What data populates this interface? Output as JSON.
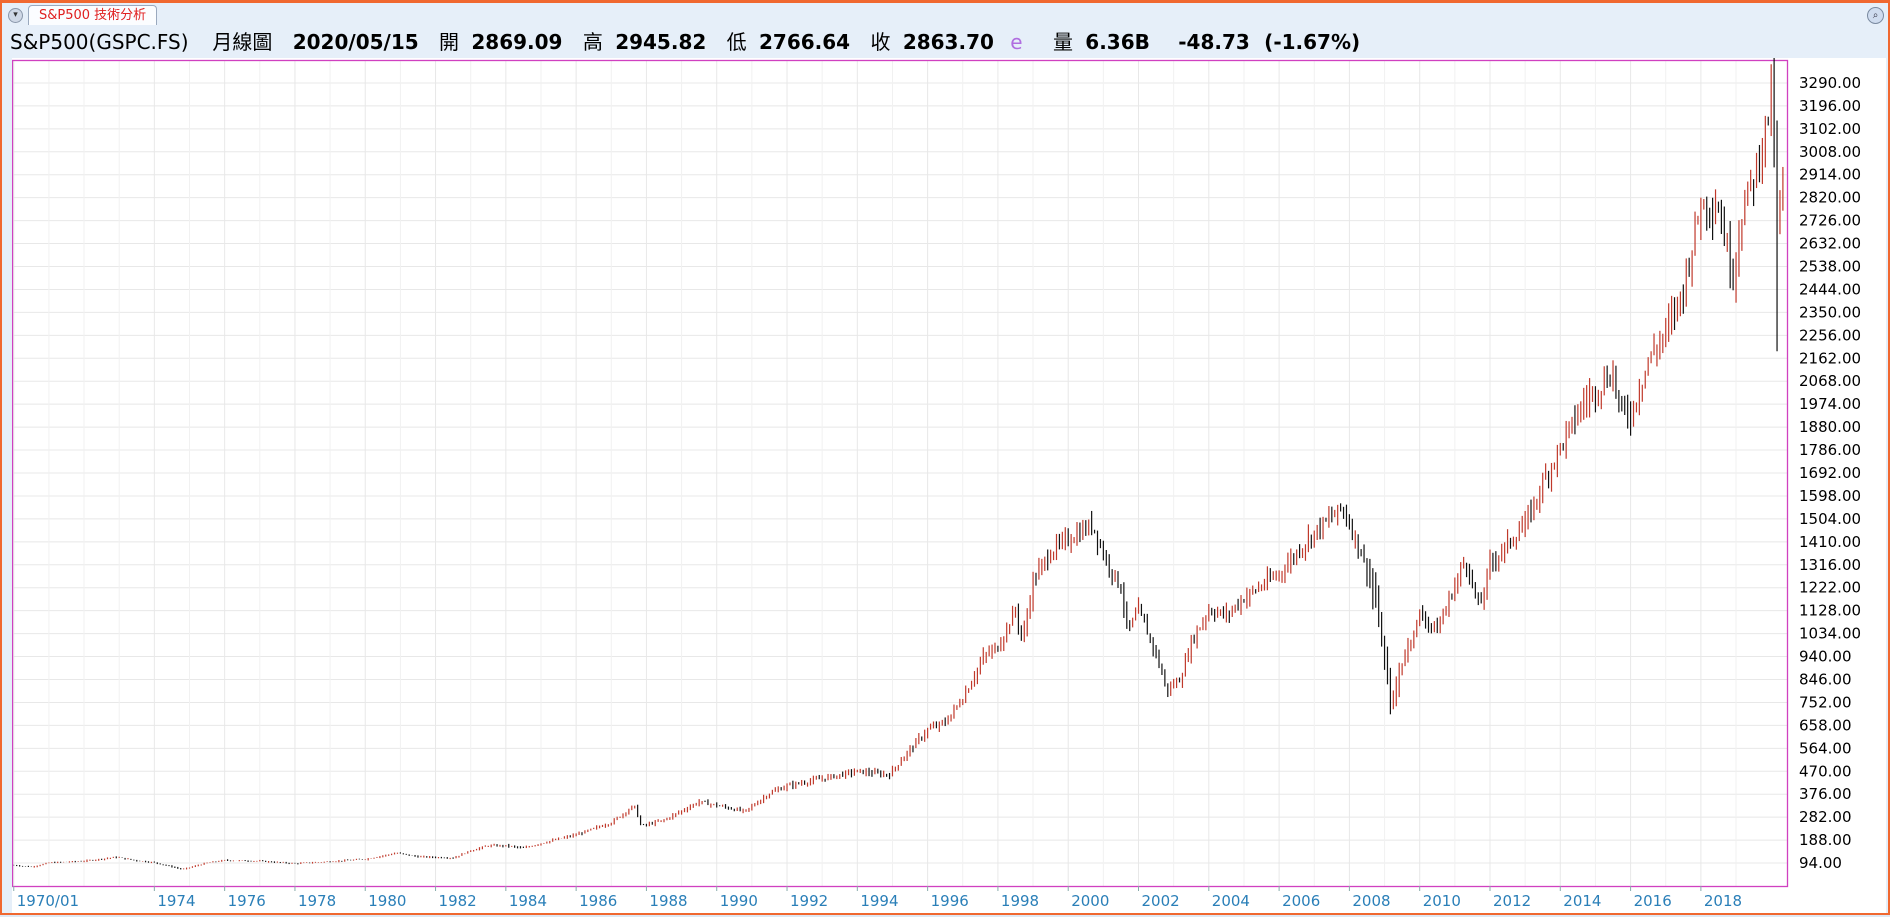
{
  "tab": {
    "title": "S&P500 技術分析"
  },
  "info": {
    "symbol": "S&P500(GSPC.FS)",
    "period": "月線圖",
    "date": "2020/05/15",
    "open_label": "開",
    "open": "2869.09",
    "high_label": "高",
    "high": "2945.82",
    "low_label": "低",
    "low": "2766.64",
    "close_label": "收",
    "close": "2863.70",
    "est_flag": "e",
    "volume_label": "量",
    "volume": "6.36B",
    "change": "-48.73",
    "change_pct": "(-1.67%)"
  },
  "colors": {
    "up": "#c0392b",
    "down": "#111111",
    "plot_border": "#d040c0",
    "grid": "#e8e8e8",
    "xaxis_text": "#2a7fb8",
    "frame": "#f06830"
  },
  "chart_data": {
    "type": "ohlc-bar",
    "title": "",
    "xlabel": "",
    "ylabel": "",
    "interval": "monthly",
    "x_range": [
      "1970/01",
      "2020/05"
    ],
    "ylim": [
      0,
      3384
    ],
    "grid": true,
    "y_ticks": [
      "94.00",
      "188.00",
      "282.00",
      "376.00",
      "470.00",
      "564.00",
      "658.00",
      "752.00",
      "846.00",
      "940.00",
      "1034.00",
      "1128.00",
      "1222.00",
      "1316.00",
      "1410.00",
      "1504.00",
      "1598.00",
      "1692.00",
      "1786.00",
      "1880.00",
      "1974.00",
      "2068.00",
      "2162.00",
      "2256.00",
      "2350.00",
      "2444.00",
      "2538.00",
      "2632.00",
      "2726.00",
      "2820.00",
      "2914.00",
      "3008.00",
      "3102.00",
      "3196.00",
      "3290.00"
    ],
    "x_ticks": [
      "1970/01",
      "1974",
      "1976",
      "1978",
      "1980",
      "1982",
      "1984",
      "1986",
      "1988",
      "1990",
      "1992",
      "1994",
      "1996",
      "1998",
      "2000",
      "2002",
      "2004",
      "2006",
      "2008",
      "2010",
      "2012",
      "2014",
      "2016",
      "2018"
    ],
    "x_tick_dates": [
      1970.0,
      1974.0,
      1976.0,
      1978.0,
      1980.0,
      1982.0,
      1984.0,
      1986.0,
      1988.0,
      1990.0,
      1992.0,
      1994.0,
      1996.0,
      1998.0,
      2000.0,
      2002.0,
      2004.0,
      2006.0,
      2008.0,
      2010.0,
      2012.0,
      2014.0,
      2016.0,
      2018.0
    ],
    "close_anchors": [
      [
        1970.0,
        85
      ],
      [
        1970.5,
        78
      ],
      [
        1971.0,
        95
      ],
      [
        1972.0,
        102
      ],
      [
        1972.9,
        118
      ],
      [
        1973.5,
        104
      ],
      [
        1974.0,
        96
      ],
      [
        1974.8,
        68
      ],
      [
        1975.5,
        95
      ],
      [
        1976.0,
        105
      ],
      [
        1977.0,
        102
      ],
      [
        1978.0,
        92
      ],
      [
        1979.0,
        100
      ],
      [
        1980.0,
        110
      ],
      [
        1980.9,
        135
      ],
      [
        1981.5,
        120
      ],
      [
        1982.5,
        115
      ],
      [
        1983.0,
        145
      ],
      [
        1983.5,
        165
      ],
      [
        1984.0,
        165
      ],
      [
        1984.5,
        155
      ],
      [
        1985.0,
        175
      ],
      [
        1986.0,
        210
      ],
      [
        1987.0,
        260
      ],
      [
        1987.65,
        330
      ],
      [
        1987.85,
        245
      ],
      [
        1988.5,
        270
      ],
      [
        1989.5,
        345
      ],
      [
        1990.0,
        330
      ],
      [
        1990.8,
        305
      ],
      [
        1991.5,
        380
      ],
      [
        1992.0,
        410
      ],
      [
        1993.0,
        440
      ],
      [
        1994.0,
        470
      ],
      [
        1994.9,
        455
      ],
      [
        1995.5,
        560
      ],
      [
        1996.0,
        640
      ],
      [
        1996.5,
        670
      ],
      [
        1997.0,
        770
      ],
      [
        1997.6,
        940
      ],
      [
        1998.0,
        980
      ],
      [
        1998.5,
        1130
      ],
      [
        1998.7,
        1000
      ],
      [
        1999.0,
        1250
      ],
      [
        1999.5,
        1370
      ],
      [
        2000.0,
        1420
      ],
      [
        2000.7,
        1480
      ],
      [
        2001.0,
        1360
      ],
      [
        2001.5,
        1220
      ],
      [
        2001.7,
        1040
      ],
      [
        2002.0,
        1130
      ],
      [
        2002.5,
        950
      ],
      [
        2002.8,
        800
      ],
      [
        2003.2,
        850
      ],
      [
        2003.5,
        1000
      ],
      [
        2004.0,
        1130
      ],
      [
        2004.5,
        1110
      ],
      [
        2005.0,
        1180
      ],
      [
        2006.0,
        1280
      ],
      [
        2007.0,
        1450
      ],
      [
        2007.8,
        1550
      ],
      [
        2008.3,
        1380
      ],
      [
        2008.7,
        1200
      ],
      [
        2009.2,
        730
      ],
      [
        2009.5,
        920
      ],
      [
        2010.0,
        1110
      ],
      [
        2010.5,
        1050
      ],
      [
        2011.3,
        1340
      ],
      [
        2011.7,
        1130
      ],
      [
        2012.0,
        1320
      ],
      [
        2013.0,
        1480
      ],
      [
        2013.5,
        1650
      ],
      [
        2014.0,
        1800
      ],
      [
        2014.7,
        1990
      ],
      [
        2015.5,
        2100
      ],
      [
        2015.7,
        1950
      ],
      [
        2016.0,
        1930
      ],
      [
        2016.5,
        2150
      ],
      [
        2017.0,
        2270
      ],
      [
        2017.5,
        2450
      ],
      [
        2018.0,
        2800
      ],
      [
        2018.5,
        2780
      ],
      [
        2018.9,
        2500
      ],
      [
        2019.2,
        2780
      ],
      [
        2019.6,
        2950
      ],
      [
        2020.0,
        3230
      ],
      [
        2020.1,
        2950
      ],
      [
        2020.2,
        2580
      ],
      [
        2020.3,
        2900
      ],
      [
        2020.35,
        2864
      ]
    ]
  }
}
